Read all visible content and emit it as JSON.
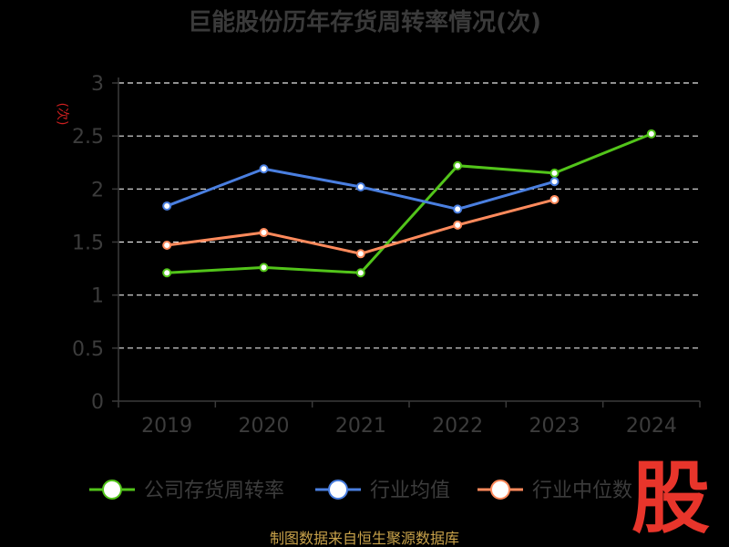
{
  "chart_data": {
    "type": "line",
    "title": "巨能股份历年存货周转率情况(次)",
    "ylabel": "(次)",
    "xlabel": "",
    "categories": [
      "2019",
      "2020",
      "2021",
      "2022",
      "2023",
      "2024"
    ],
    "ylim": [
      0,
      3
    ],
    "yticks": [
      "0",
      "0.5",
      "1",
      "1.5",
      "2",
      "2.5",
      "3"
    ],
    "grid": true,
    "legend_position": "bottom",
    "series": [
      {
        "name": "公司存货周转率",
        "color": "#52c41a",
        "values": [
          1.21,
          1.26,
          1.21,
          2.22,
          2.15,
          2.52
        ]
      },
      {
        "name": "行业均值",
        "color": "#4a7fe0",
        "values": [
          1.84,
          2.19,
          2.02,
          1.81,
          2.07,
          null
        ]
      },
      {
        "name": "行业中位数",
        "color": "#ff8a5c",
        "values": [
          1.47,
          1.59,
          1.39,
          1.66,
          1.9,
          null
        ]
      }
    ]
  },
  "footer": "制图数据来自恒生聚源数据库",
  "watermark": "股"
}
